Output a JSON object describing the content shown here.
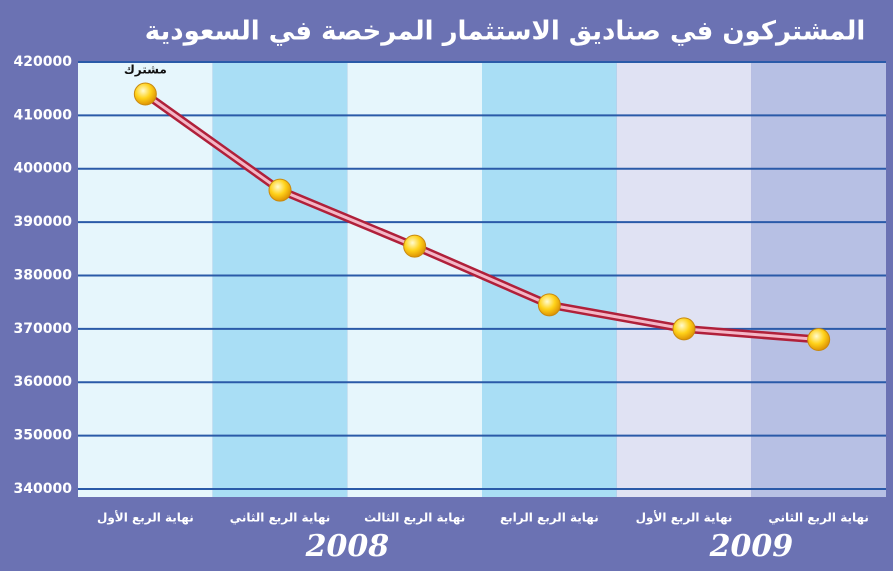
{
  "chart_data": {
    "type": "line",
    "title": "المشتركون في صناديق الاستثمار المرخصة في السعودية",
    "categories": [
      "نهاية الربع الأول",
      "نهاية الربع الثاني",
      "نهاية الربع الثالث",
      "نهاية الربع الرابع",
      "نهاية الربع الأول",
      "نهاية الربع الثاني"
    ],
    "years": [
      "2008",
      "2009"
    ],
    "series": [
      {
        "name": "مشترك",
        "color": "#b0203a",
        "values": [
          414000,
          396000,
          385500,
          374500,
          370000,
          368000
        ]
      }
    ],
    "ylim": [
      338500,
      420000
    ],
    "yticks": [
      340000,
      350000,
      360000,
      370000,
      380000,
      390000,
      400000,
      410000,
      420000
    ],
    "band_colors": [
      "#e6f6fc",
      "#a9def5",
      "#e6f6fc",
      "#a9def5",
      "#e0e2f3",
      "#b7c0e4"
    ],
    "grid": true
  }
}
